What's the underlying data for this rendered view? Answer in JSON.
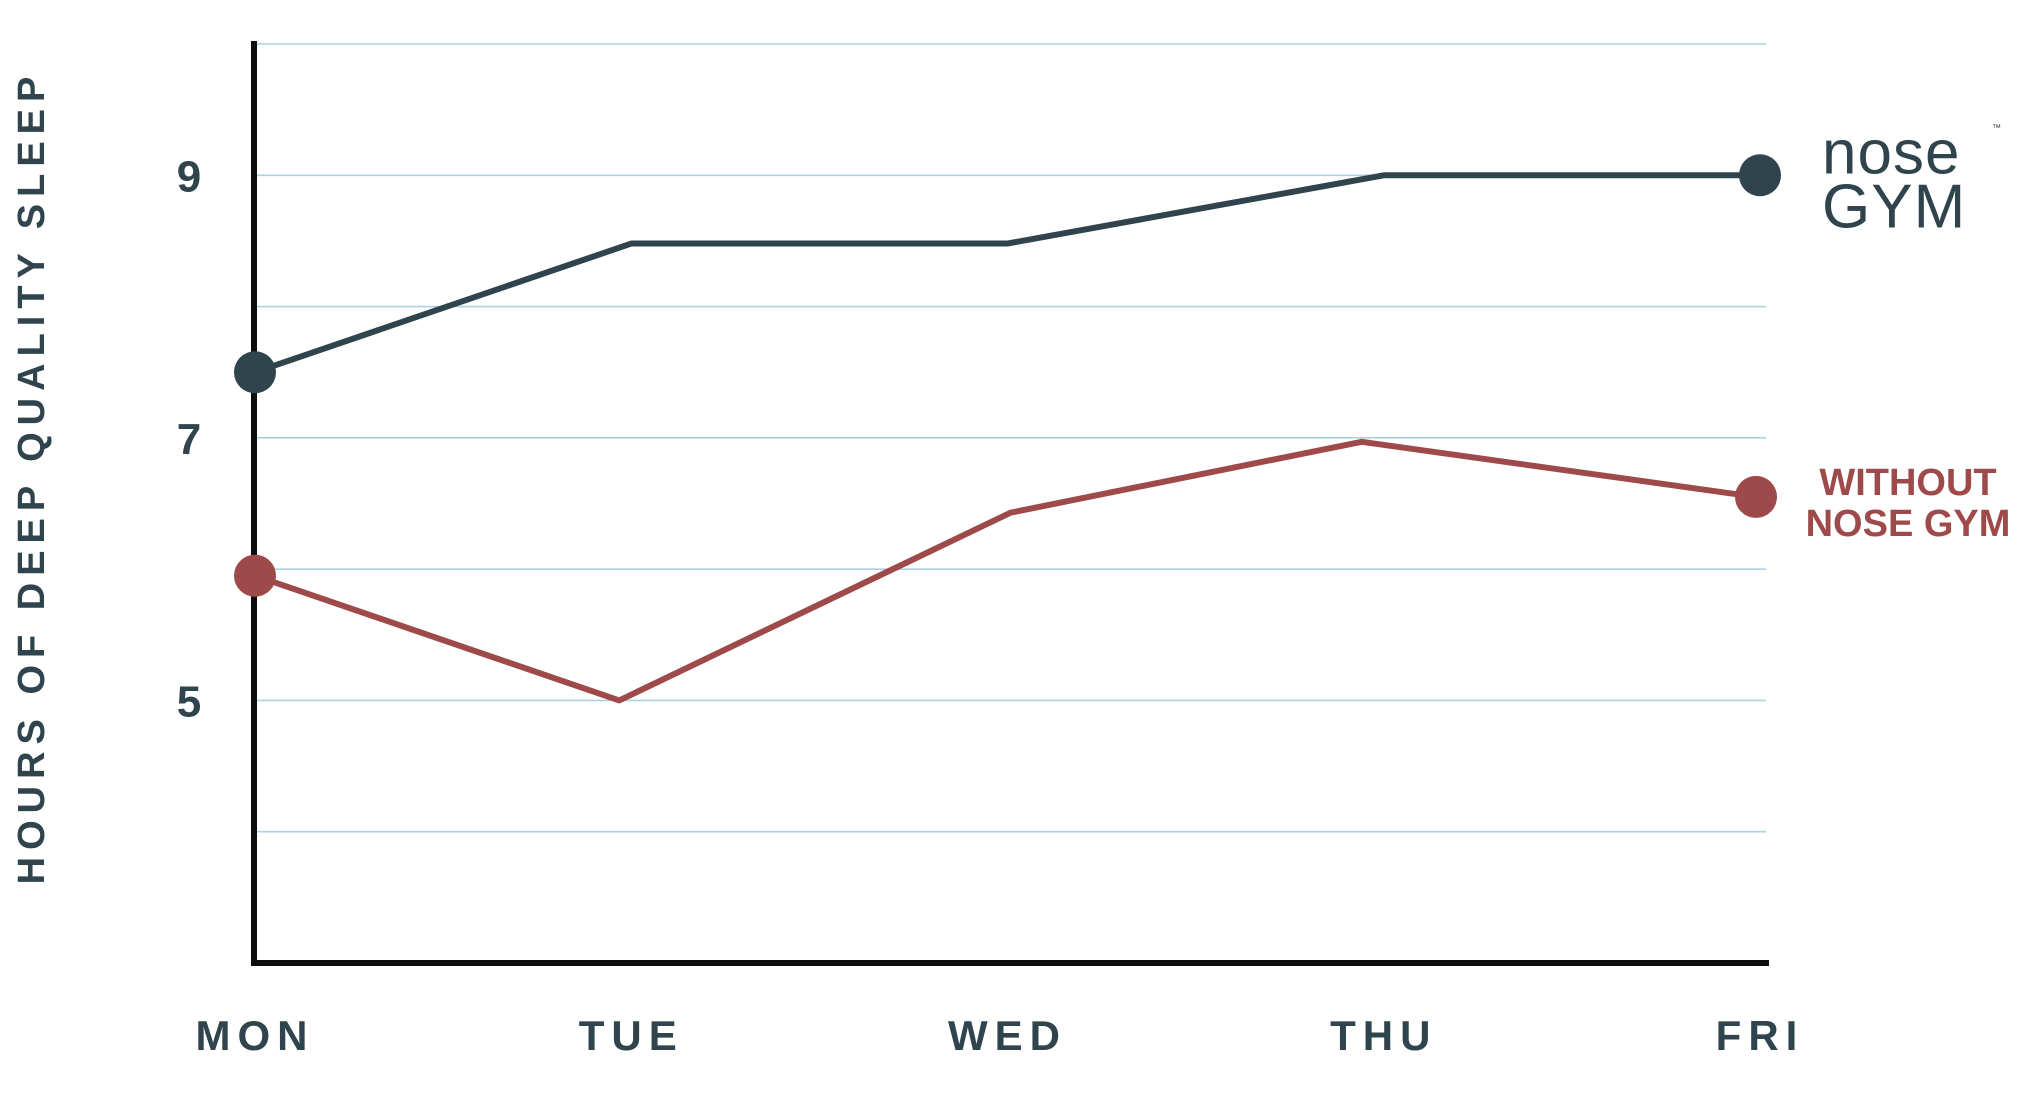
{
  "chart_data": {
    "type": "line",
    "categories": [
      "MON",
      "TUE",
      "WED",
      "THU",
      "FRI"
    ],
    "series": [
      {
        "name": "NOSE GYM",
        "values": [
          7.5,
          8.48,
          8.48,
          9.0,
          9.0
        ],
        "color": "#2f444c",
        "label_style": "logo"
      },
      {
        "name": "WITHOUT NOSE GYM",
        "label_lines": [
          "WITHOUT",
          "NOSE GYM"
        ],
        "values": [
          5.95,
          5.0,
          6.43,
          6.97,
          6.55
        ],
        "color": "#9e4a4b",
        "label_style": "text"
      }
    ],
    "title": "",
    "xlabel": "",
    "ylabel": "HOURS OF DEEP QUALITY SLEEP",
    "ylim": [
      3,
      10
    ],
    "yticks": [
      5,
      7,
      9
    ],
    "ytick_labels": [
      "5",
      "7",
      "9"
    ],
    "grid": true,
    "grid_color": "#a9d2e3",
    "axis_color": "#0d0d0d",
    "text_color": "#2f444c",
    "legend": "inline-right",
    "logo": {
      "line1": "nose",
      "line2": "GYM",
      "trademark": "™"
    }
  }
}
